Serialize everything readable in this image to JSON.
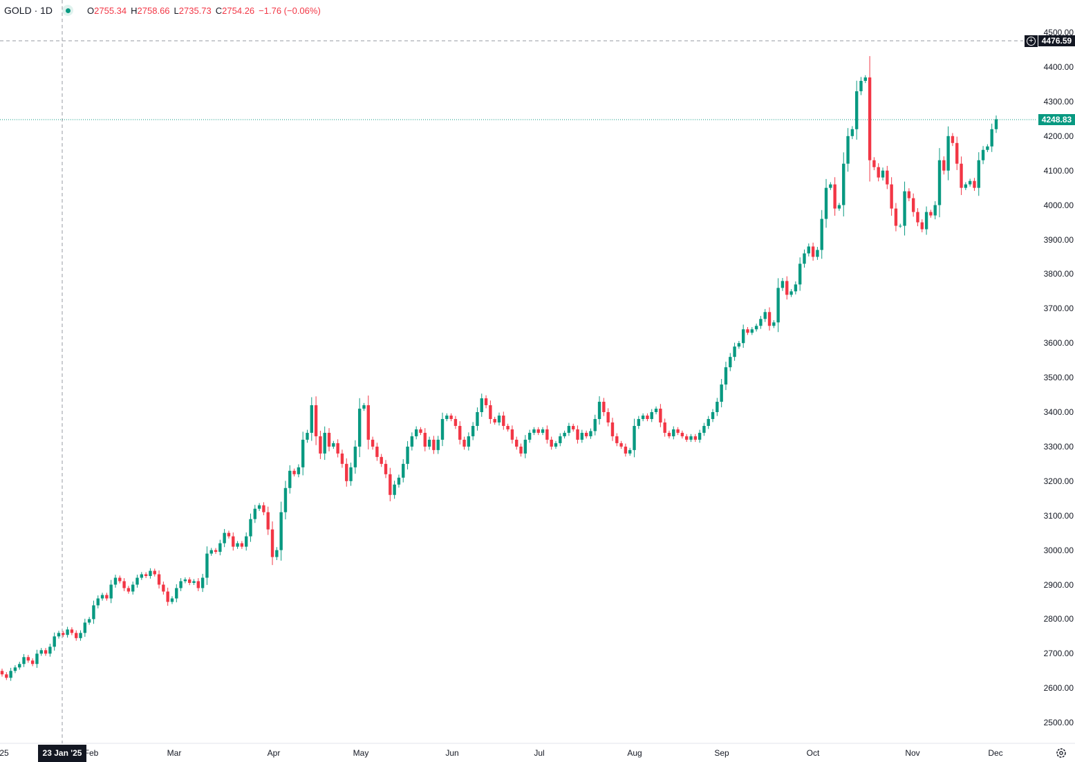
{
  "header": {
    "symbol": "GOLD · 1D",
    "open_key": "O",
    "open": "2755.34",
    "high_key": "H",
    "high": "2758.66",
    "low_key": "L",
    "low": "2735.73",
    "close_key": "C",
    "close": "2754.26",
    "change": "−1.76 (−0.06%)",
    "status_color": "#089981"
  },
  "crosshair": {
    "date_label": "23 Jan '25",
    "price_label": "4476.59",
    "add_icon": "plus-circle-icon"
  },
  "last_price": {
    "label": "4248.83",
    "color": "#089981"
  },
  "settings_icon": "gear-icon",
  "chart_data": {
    "type": "candlestick",
    "title": "GOLD · 1D",
    "up_color": "#089981",
    "down_color": "#f23645",
    "ylim": [
      2450,
      4520
    ],
    "y_ticks": [
      "2500.00",
      "2600.00",
      "2700.00",
      "2800.00",
      "2900.00",
      "3000.00",
      "3100.00",
      "3200.00",
      "3300.00",
      "3400.00",
      "3500.00",
      "3600.00",
      "3700.00",
      "3800.00",
      "3900.00",
      "4000.00",
      "4100.00",
      "4200.00",
      "4300.00",
      "4400.00",
      "4500.00"
    ],
    "x_ticks": [
      "25",
      "Feb",
      "Mar",
      "Apr",
      "May",
      "Jun",
      "Jul",
      "Aug",
      "Sep",
      "Oct",
      "Nov",
      "Dec"
    ],
    "first_open": 2650,
    "close": [
      2640,
      2630,
      2650,
      2660,
      2670,
      2690,
      2680,
      2670,
      2700,
      2710,
      2700,
      2720,
      2750,
      2760,
      2754.26,
      2770,
      2760,
      2745,
      2760,
      2790,
      2800,
      2840,
      2860,
      2870,
      2860,
      2900,
      2920,
      2910,
      2890,
      2880,
      2900,
      2920,
      2930,
      2925,
      2940,
      2930,
      2900,
      2880,
      2850,
      2860,
      2890,
      2910,
      2915,
      2905,
      2910,
      2890,
      2920,
      2990,
      3000,
      2995,
      3020,
      3050,
      3040,
      3010,
      3020,
      3010,
      3040,
      3090,
      3120,
      3130,
      3110,
      3060,
      2980,
      3000,
      3110,
      3180,
      3230,
      3220,
      3240,
      3320,
      3340,
      3420,
      3330,
      3280,
      3340,
      3300,
      3310,
      3280,
      3250,
      3200,
      3240,
      3300,
      3410,
      3420,
      3320,
      3300,
      3270,
      3250,
      3220,
      3160,
      3190,
      3210,
      3250,
      3300,
      3330,
      3350,
      3340,
      3300,
      3320,
      3290,
      3320,
      3380,
      3390,
      3380,
      3360,
      3320,
      3300,
      3330,
      3360,
      3400,
      3440,
      3420,
      3380,
      3370,
      3390,
      3360,
      3350,
      3320,
      3300,
      3280,
      3320,
      3340,
      3350,
      3340,
      3350,
      3320,
      3300,
      3310,
      3330,
      3340,
      3360,
      3350,
      3320,
      3340,
      3330,
      3345,
      3380,
      3430,
      3400,
      3370,
      3330,
      3310,
      3300,
      3280,
      3290,
      3360,
      3380,
      3390,
      3380,
      3400,
      3410,
      3370,
      3340,
      3330,
      3350,
      3340,
      3330,
      3320,
      3330,
      3320,
      3340,
      3360,
      3380,
      3400,
      3430,
      3480,
      3530,
      3560,
      3590,
      3600,
      3640,
      3630,
      3640,
      3650,
      3670,
      3690,
      3650,
      3660,
      3760,
      3780,
      3740,
      3750,
      3770,
      3830,
      3860,
      3880,
      3850,
      3870,
      3960,
      4050,
      4060,
      3990,
      4000,
      4120,
      4200,
      4220,
      4330,
      4360,
      4370,
      4130,
      4110,
      4080,
      4100,
      4060,
      3990,
      3940,
      3940,
      4040,
      4020,
      3980,
      3950,
      3930,
      3980,
      3970,
      4000,
      4130,
      4100,
      4200,
      4180,
      4120,
      4050,
      4060,
      4070,
      4050,
      4130,
      4160,
      4170,
      4220,
      4248.83
    ]
  }
}
